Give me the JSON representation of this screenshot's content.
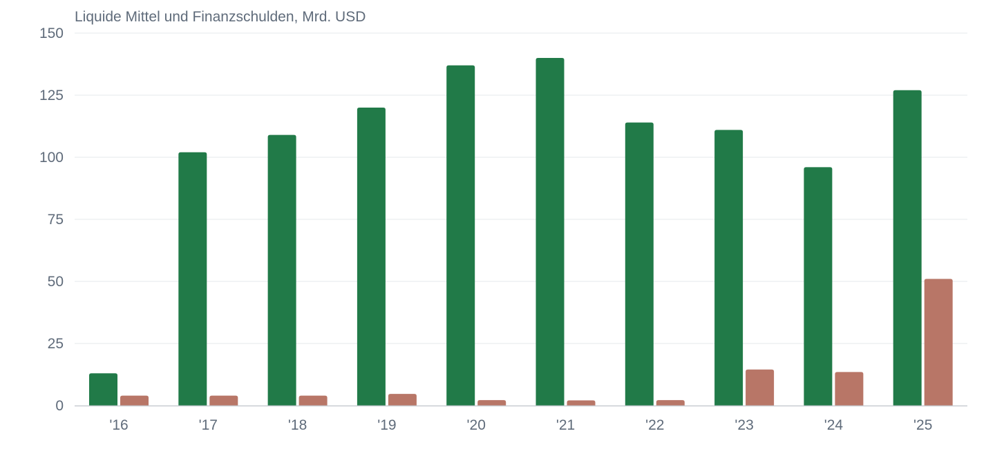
{
  "chart_data": {
    "type": "bar",
    "title": "Liquide Mittel und Finanzschulden, Mrd. USD",
    "categories": [
      "'16",
      "'17",
      "'18",
      "'19",
      "'20",
      "'21",
      "'22",
      "'23",
      "'24",
      "'25"
    ],
    "series": [
      {
        "color": "#217a48",
        "values": [
          13,
          102,
          109,
          120,
          137,
          140,
          114,
          111,
          96,
          127
        ]
      },
      {
        "color": "#b87667",
        "values": [
          4,
          4,
          4,
          4.7,
          2.2,
          2.1,
          2.2,
          14.5,
          13.5,
          51
        ]
      }
    ],
    "yticks": [
      0,
      25,
      50,
      75,
      100,
      125,
      150
    ],
    "ylim": [
      0,
      150
    ],
    "grid": true,
    "legend": "none"
  }
}
